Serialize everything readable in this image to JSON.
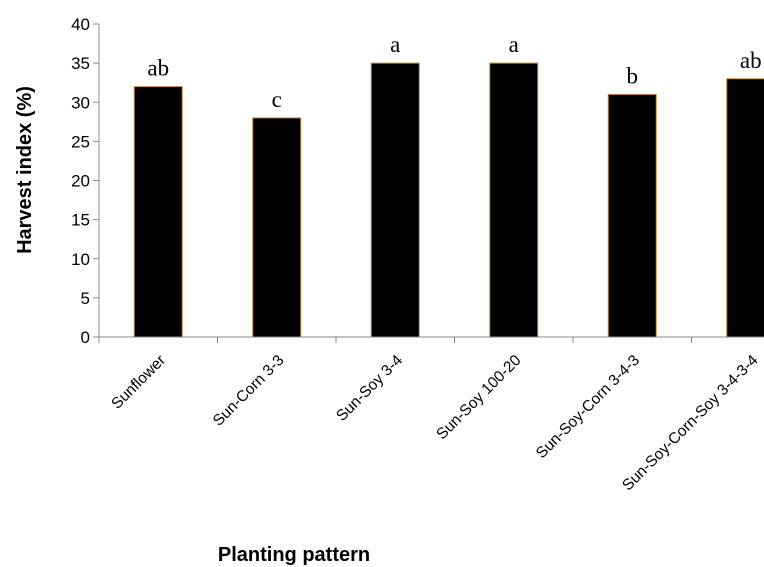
{
  "chart_data": {
    "type": "bar",
    "title": "",
    "xlabel": "Planting pattern",
    "ylabel": "Harvest index (%)",
    "ylim": [
      0,
      40
    ],
    "yticks": [
      0,
      5,
      10,
      15,
      20,
      25,
      30,
      35,
      40
    ],
    "categories": [
      "Sunflower",
      "Sun-Corn 3-3",
      "Sun-Soy 3-4",
      "Sun-Soy 100-20",
      "Sun-Soy-Corn 3-4-3",
      "Sun-Soy-Corn-Soy 3-4-3-4"
    ],
    "values": [
      32,
      28,
      35,
      35,
      31,
      33
    ],
    "significance_letters": [
      "ab",
      "c",
      "a",
      "a",
      "b",
      "ab"
    ],
    "bar_color": "#000000",
    "bar_edge_color": "#c8873a",
    "grid": false,
    "legend": "none"
  }
}
